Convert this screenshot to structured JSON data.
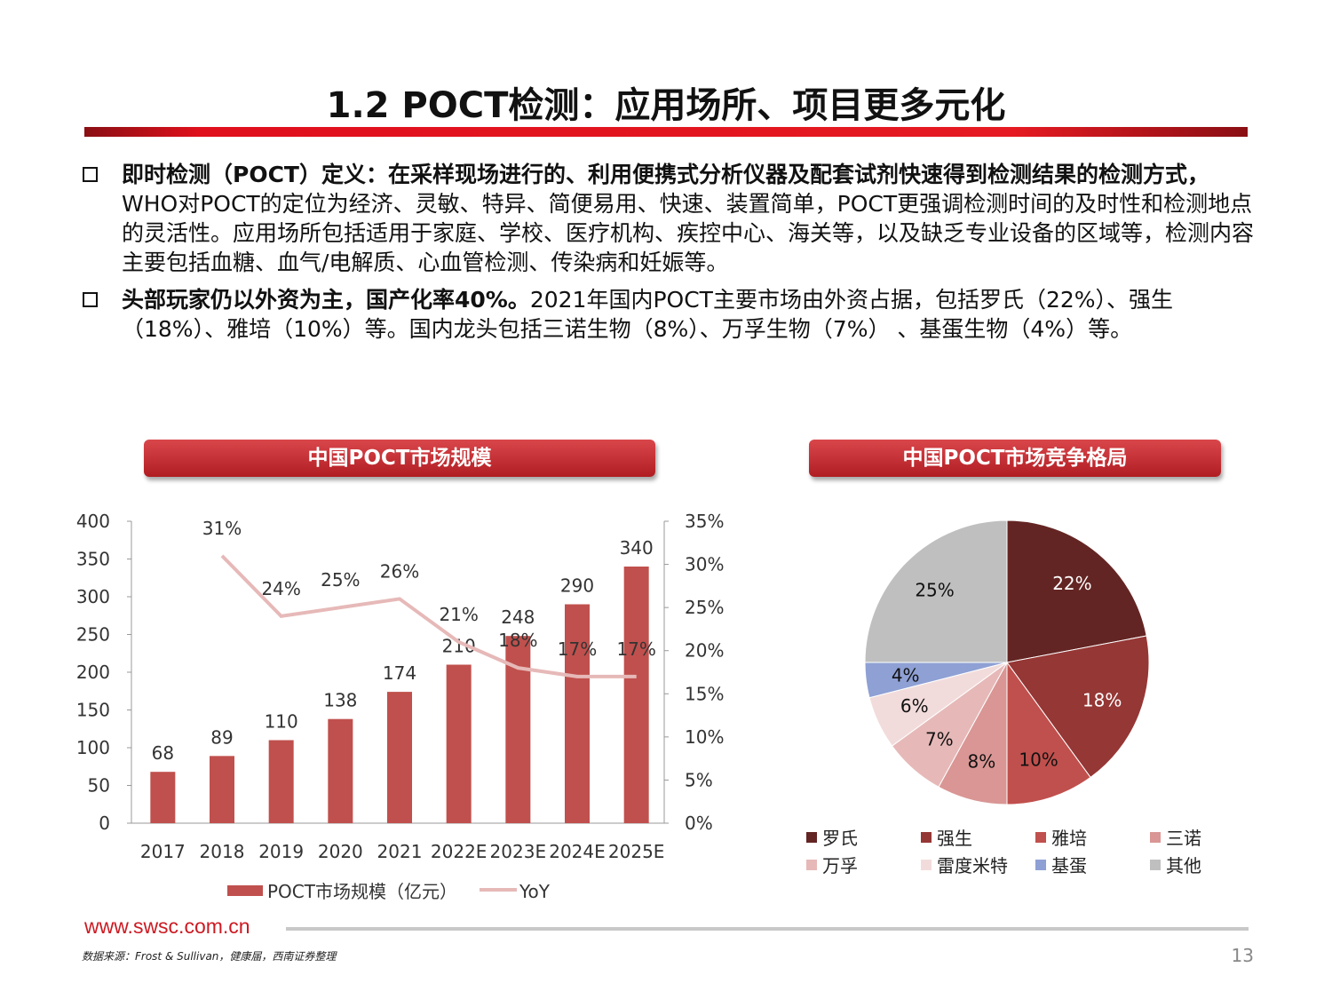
{
  "title": "1.2 POCT检测：应用场所、项目更多元化",
  "bullets": [
    {
      "bold": "即时检测（POCT）定义：在采样现场进行的、利用便携式分析仪器及配套试剂快速得到检测结果的检测方式，",
      "text": "WHO对POCT的定位为经济、灵敏、特异、简便易用、快速、装置简单，POCT更强调检测时间的及时性和检测地点的灵活性。应用场所包括适用于家庭、学校、医疗机构、疾控中心、海关等，以及缺乏专业设备的区域等，检测内容主要包括血糖、血气/电解质、心血管检测、传染病和妊娠等。"
    },
    {
      "bold": "头部玩家仍以外资为主，国产化率40%。",
      "text": "2021年国内POCT主要市场由外资占据，包括罗氏（22%）、强生（18%）、雅培（10%）等。国内龙头包括三诺生物（8%）、万孚生物（7%） 、基蛋生物（4%）等。"
    }
  ],
  "chart_data": [
    {
      "type": "bar+line",
      "title": "中国POCT市场规模",
      "categories": [
        "2017",
        "2018",
        "2019",
        "2020",
        "2021",
        "2022E",
        "2023E",
        "2024E",
        "2025E"
      ],
      "series": [
        {
          "name": "POCT市场规模（亿元）",
          "type": "bar",
          "axis": "left",
          "color": "#c0504d",
          "values": [
            68,
            89,
            110,
            138,
            174,
            210,
            248,
            290,
            340
          ]
        },
        {
          "name": "YoY",
          "type": "line",
          "axis": "right",
          "color": "#e6b9b8",
          "values": [
            null,
            31,
            24,
            25,
            26,
            21,
            18,
            17,
            17
          ]
        }
      ],
      "left_axis": {
        "ylim": [
          0,
          400
        ],
        "ticks": [
          0,
          50,
          100,
          150,
          200,
          250,
          300,
          350,
          400
        ]
      },
      "right_axis": {
        "ylim": [
          0,
          35
        ],
        "ticks": [
          "0%",
          "5%",
          "10%",
          "15%",
          "20%",
          "25%",
          "30%",
          "35%"
        ]
      },
      "legend": "bottom"
    },
    {
      "type": "pie",
      "title": "中国POCT市场竞争格局",
      "labels": [
        "罗氏",
        "强生",
        "雅培",
        "三诺",
        "万孚",
        "雷度米特",
        "基蛋",
        "其他"
      ],
      "values": [
        22,
        18,
        10,
        8,
        7,
        6,
        4,
        25
      ],
      "colors": [
        "#632523",
        "#953735",
        "#c0504d",
        "#d99694",
        "#e6b9b8",
        "#f2dcdb",
        "#8ea0d4",
        "#bfbfbf"
      ],
      "label_colors": [
        "#fff",
        "#fff",
        "#111",
        "#111",
        "#111",
        "#111",
        "#111",
        "#111"
      ],
      "legend": "bottom"
    }
  ],
  "footer": {
    "url": "www.swsc.com.cn",
    "source": "数据来源：Frost & Sullivan，健康届，西南证券整理",
    "page": "13"
  }
}
